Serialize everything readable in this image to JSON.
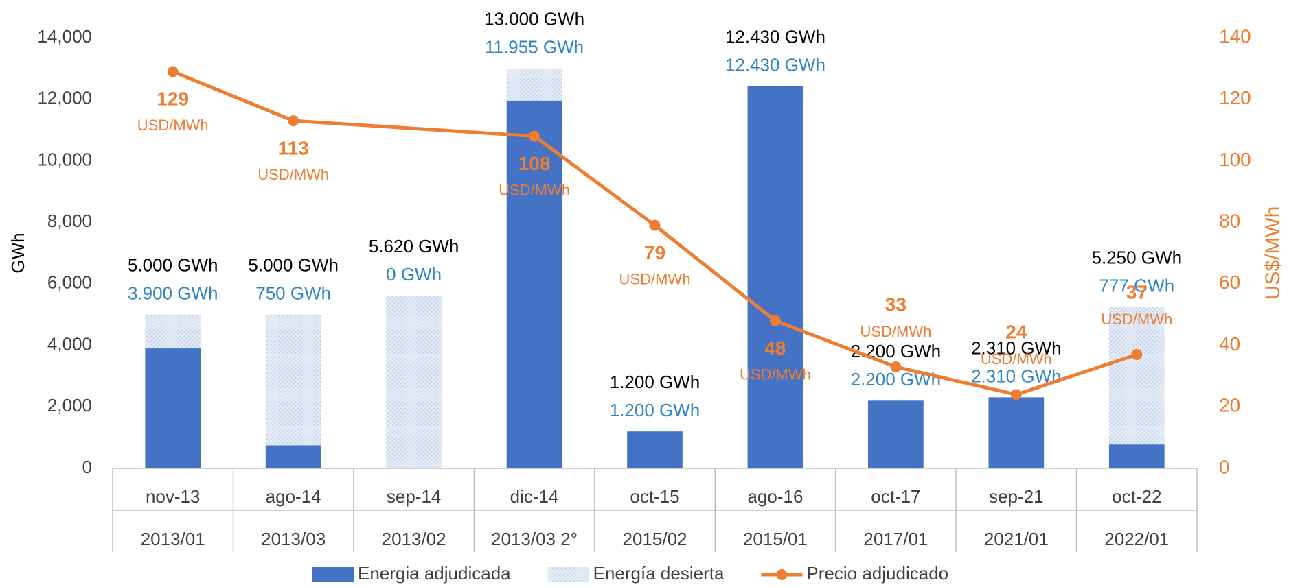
{
  "chart_data": {
    "type": "combo",
    "categories": [
      "nov-13",
      "ago-14",
      "sep-14",
      "dic-14",
      "oct-15",
      "ago-16",
      "oct-17",
      "sep-21",
      "oct-22"
    ],
    "subcategories": [
      "2013/01",
      "2013/03",
      "2013/02",
      "2013/03 2°",
      "2015/02",
      "2015/01",
      "2017/01",
      "2021/01",
      "2022/01"
    ],
    "ylabel": "GWh",
    "y2label": "US$/MWh",
    "ylim": [
      0,
      14000
    ],
    "yticks": [
      0,
      {
        "value": 2000,
        "label": "2,000"
      },
      {
        "value": 4000,
        "label": "4,000"
      },
      {
        "value": 6000,
        "label": "6,000"
      },
      {
        "value": 8000,
        "label": "8,000"
      },
      {
        "value": 10000,
        "label": "10,000"
      },
      {
        "value": 12000,
        "label": "12,000"
      },
      {
        "value": 14000,
        "label": "14,000"
      }
    ],
    "y2lim": [
      0,
      140
    ],
    "y2ticks": [
      0,
      20,
      40,
      60,
      80,
      100,
      120,
      140
    ],
    "series": [
      {
        "name": "Energia adjudicada",
        "type": "bar",
        "color": "#4472c4",
        "values": [
          3900,
          750,
          0,
          11955,
          1200,
          12430,
          2200,
          2310,
          777
        ],
        "value_labels": [
          "3.900 GWh",
          "750 GWh",
          "0 GWh",
          "11.955 GWh",
          "1.200 GWh",
          "12.430 GWh",
          "2.200 GWh",
          "2.310 GWh",
          "777 GWh"
        ]
      },
      {
        "name": "Energía desierta",
        "type": "bar",
        "color": "#dae3f3",
        "values": [
          1100,
          4250,
          5620,
          1045,
          0,
          0,
          0,
          0,
          4473
        ]
      },
      {
        "name": "Precio adjudicado",
        "type": "line",
        "axis": "y2",
        "color": "#ed7d31",
        "values": [
          129,
          113,
          null,
          108,
          79,
          48,
          33,
          24,
          37
        ],
        "value_unit": "USD/MWh",
        "span_gaps": true
      }
    ],
    "stack_total_labels": [
      "5.000 GWh",
      "5.000 GWh",
      "5.620 GWh",
      "13.000 GWh",
      "1.200 GWh",
      "12.430 GWh",
      "2.200 GWh",
      "2.310 GWh",
      "5.250 GWh"
    ]
  }
}
